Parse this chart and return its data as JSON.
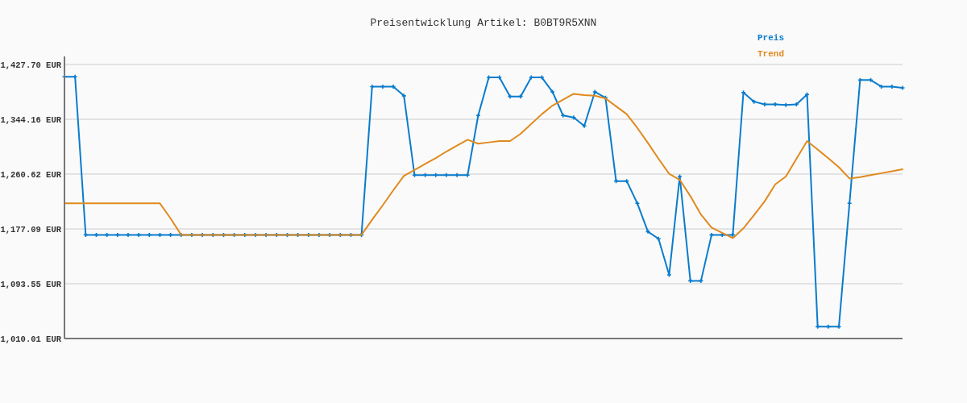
{
  "chart_data": {
    "type": "line",
    "title": "Preisentwicklung Artikel: B0BT9R5XNN",
    "categories": [
      null,
      null,
      null,
      null,
      null,
      null,
      null,
      null,
      null,
      null,
      null,
      null,
      null,
      null,
      null,
      null,
      null,
      null,
      null,
      null,
      null,
      null,
      null,
      null,
      null,
      null,
      null,
      null,
      null,
      null,
      null,
      null,
      null,
      null,
      null,
      null,
      null,
      null,
      null,
      null,
      null,
      null,
      null,
      null,
      null,
      null,
      null,
      null,
      null,
      null,
      null,
      null,
      null,
      null,
      null,
      null,
      null,
      null,
      null,
      null,
      null,
      null,
      null,
      null,
      null,
      null,
      null,
      null,
      null,
      null,
      null,
      null,
      null,
      null,
      null,
      null,
      null,
      null,
      null,
      null
    ],
    "series": [
      {
        "name": "Preis",
        "color": "#0a7ccc",
        "marker": "cross",
        "values": [
          1409,
          1409,
          1168,
          1168,
          1168,
          1168,
          1168,
          1168,
          1168,
          1168,
          1168,
          1168,
          1168,
          1168,
          1168,
          1168,
          1168,
          1168,
          1168,
          1168,
          1168,
          1168,
          1168,
          1168,
          1168,
          1168,
          1168,
          1168,
          1168,
          1394,
          1394,
          1394,
          1380,
          1259,
          1259,
          1259,
          1259,
          1259,
          1259,
          1350,
          1408,
          1408,
          1379,
          1379,
          1408,
          1408,
          1386,
          1350,
          1347,
          1334,
          1386,
          1377,
          1250,
          1250,
          1216,
          1173,
          1162,
          1107,
          1257,
          1098,
          1098,
          1168,
          1168,
          1168,
          1385,
          1371,
          1367,
          1367,
          1366,
          1367,
          1382,
          1028,
          1028,
          1028,
          1216,
          1404,
          1404,
          1394,
          1394,
          1392
        ]
      },
      {
        "name": "Trend",
        "color": "#e08a1e",
        "marker": "none",
        "values": [
          1216,
          1216,
          1216,
          1216,
          1216,
          1216,
          1216,
          1216,
          1216,
          1216,
          1193,
          1168,
          1168,
          1168,
          1168,
          1168,
          1168,
          1168,
          1168,
          1168,
          1168,
          1168,
          1168,
          1168,
          1168,
          1168,
          1168,
          1168,
          1168,
          1191,
          1213,
          1236,
          1258,
          1267,
          1276,
          1285,
          1295,
          1304,
          1313,
          1307,
          1309,
          1311,
          1311,
          1322,
          1337,
          1352,
          1365,
          1374,
          1383,
          1381,
          1380,
          1376,
          1364,
          1352,
          1331,
          1308,
          1284,
          1261,
          1252,
          1227,
          1199,
          1179,
          1171,
          1163,
          1178,
          1198,
          1219,
          1245,
          1257,
          1284,
          1311,
          1298,
          1285,
          1271,
          1254,
          1256,
          1259,
          1262,
          1265,
          1268
        ]
      }
    ],
    "ylim": [
      1010.01,
      1427.7
    ],
    "yticks": [
      {
        "value": 1010.01,
        "label": "1,010.01 EUR"
      },
      {
        "value": 1093.55,
        "label": "1,093.55 EUR"
      },
      {
        "value": 1177.09,
        "label": "1,177.09 EUR"
      },
      {
        "value": 1260.62,
        "label": "1,260.62 EUR"
      },
      {
        "value": 1344.16,
        "label": "1,344.16 EUR"
      },
      {
        "value": 1427.7,
        "label": "1,427.70 EUR"
      }
    ],
    "tick_labels": "y",
    "grid": "y",
    "legend": "top right"
  }
}
